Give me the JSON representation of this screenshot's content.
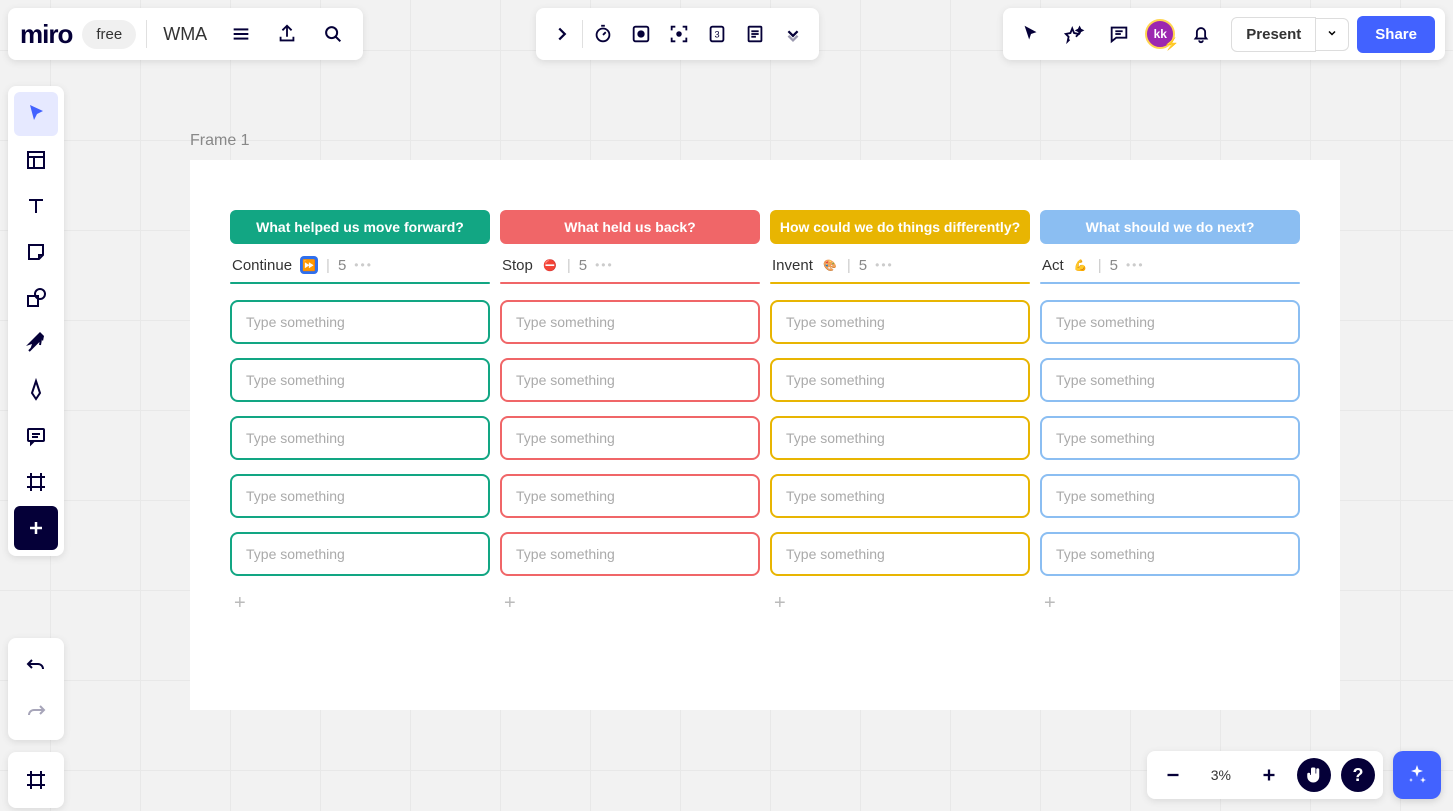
{
  "app": {
    "logo": "miro",
    "plan": "free",
    "board_name": "WMA"
  },
  "topbar_right": {
    "avatar_initials": "kk",
    "present_label": "Present",
    "share_label": "Share"
  },
  "frame": {
    "label": "Frame 1"
  },
  "columns": [
    {
      "header": "What helped us move forward?",
      "header_bg": "#12a683",
      "title": "Continue",
      "emoji": "⏩",
      "emoji_bg": "#2f6fed",
      "count": "5",
      "underline": "#12a683",
      "border": "#12a683",
      "cards": [
        "Type something",
        "Type something",
        "Type something",
        "Type something",
        "Type something"
      ]
    },
    {
      "header": "What held us back?",
      "header_bg": "#f06668",
      "title": "Stop",
      "emoji": "⛔",
      "emoji_bg": "transparent",
      "count": "5",
      "underline": "#f06668",
      "border": "#f06668",
      "cards": [
        "Type something",
        "Type something",
        "Type something",
        "Type something",
        "Type something"
      ]
    },
    {
      "header": "How could we do things differently?",
      "header_bg": "#e8b502",
      "title": "Invent",
      "emoji": "🎨",
      "emoji_bg": "transparent",
      "count": "5",
      "underline": "#e8b502",
      "border": "#e8b502",
      "cards": [
        "Type something",
        "Type something",
        "Type something",
        "Type something",
        "Type something"
      ]
    },
    {
      "header": "What should we do next?",
      "header_bg": "#8bbef2",
      "title": "Act",
      "emoji": "💪",
      "emoji_bg": "transparent",
      "count": "5",
      "underline": "#8bbef2",
      "border": "#8bbef2",
      "cards": [
        "Type something",
        "Type something",
        "Type something",
        "Type something",
        "Type something"
      ]
    }
  ],
  "zoom": {
    "level": "3%"
  },
  "colors": {
    "primary": "#4262ff",
    "dark": "#050038"
  }
}
